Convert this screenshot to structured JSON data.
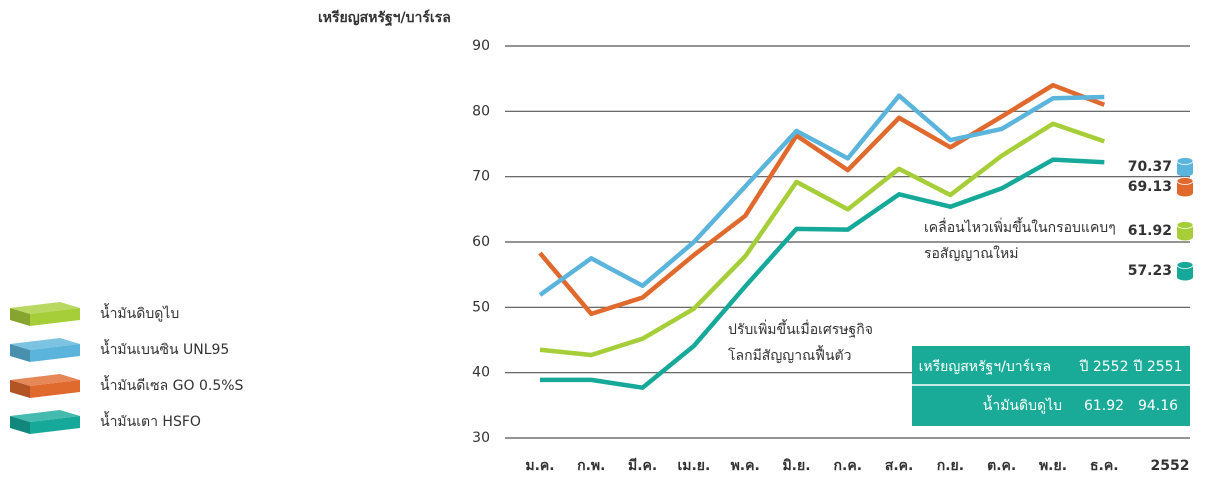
{
  "chart_data": {
    "type": "line",
    "y_label": "เหรียญสหรัฐฯ/บาร์เรล",
    "categories": [
      "ม.ค.",
      "ก.พ.",
      "มี.ค.",
      "เม.ย.",
      "พ.ค.",
      "มิ.ย.",
      "ก.ค.",
      "ส.ค.",
      "ก.ย.",
      "ต.ค.",
      "พ.ย.",
      "ธ.ค."
    ],
    "year_label": "2552",
    "ylim": [
      30,
      90
    ],
    "yticks": [
      30,
      40,
      50,
      60,
      70,
      80,
      90
    ],
    "grid": true,
    "series": [
      {
        "name": "น้ำมันดิบดูไบ",
        "color": "#a6ce39",
        "average": 61.92,
        "values": [
          43.5,
          42.7,
          45.2,
          49.8,
          57.8,
          69.2,
          65.0,
          71.2,
          67.2,
          73.2,
          78.1,
          75.4
        ]
      },
      {
        "name": "น้ำมันเบนซิน UNL95",
        "color": "#5bb4db",
        "average": 70.37,
        "values": [
          51.9,
          57.5,
          53.3,
          60.0,
          68.5,
          77.0,
          72.8,
          82.4,
          75.6,
          77.3,
          82.0,
          82.2
        ]
      },
      {
        "name": "น้ำมันดีเซล GO 0.5%S",
        "color": "#e0692e",
        "average": 69.13,
        "values": [
          58.3,
          49.0,
          51.5,
          58.0,
          64.0,
          76.3,
          71.0,
          79.0,
          74.5,
          79.2,
          84.0,
          81.0
        ]
      },
      {
        "name": "น้ำมันเตา HSFO",
        "color": "#16a99a",
        "average": 57.23,
        "values": [
          38.9,
          38.9,
          37.7,
          44.1,
          53.2,
          62.0,
          61.9,
          67.3,
          65.4,
          68.2,
          72.6,
          72.2
        ]
      }
    ],
    "annotations": [
      [
        "ปรับเพิ่มขึ้นเมื่อเศรษฐกิจ",
        "โลกมีสัญญาณฟื้นตัว"
      ],
      [
        "เคลื่อนไหวเพิ่มขึ้นในกรอบแคบๆ",
        "รอสัญญาณใหม่"
      ]
    ],
    "table": {
      "header": [
        "เหรียญสหรัฐฯ/บาร์เรล",
        "ปี 2552",
        "ปี 2551"
      ],
      "row": [
        "น้ำมันดิบดูไบ",
        61.92,
        94.16
      ]
    }
  }
}
